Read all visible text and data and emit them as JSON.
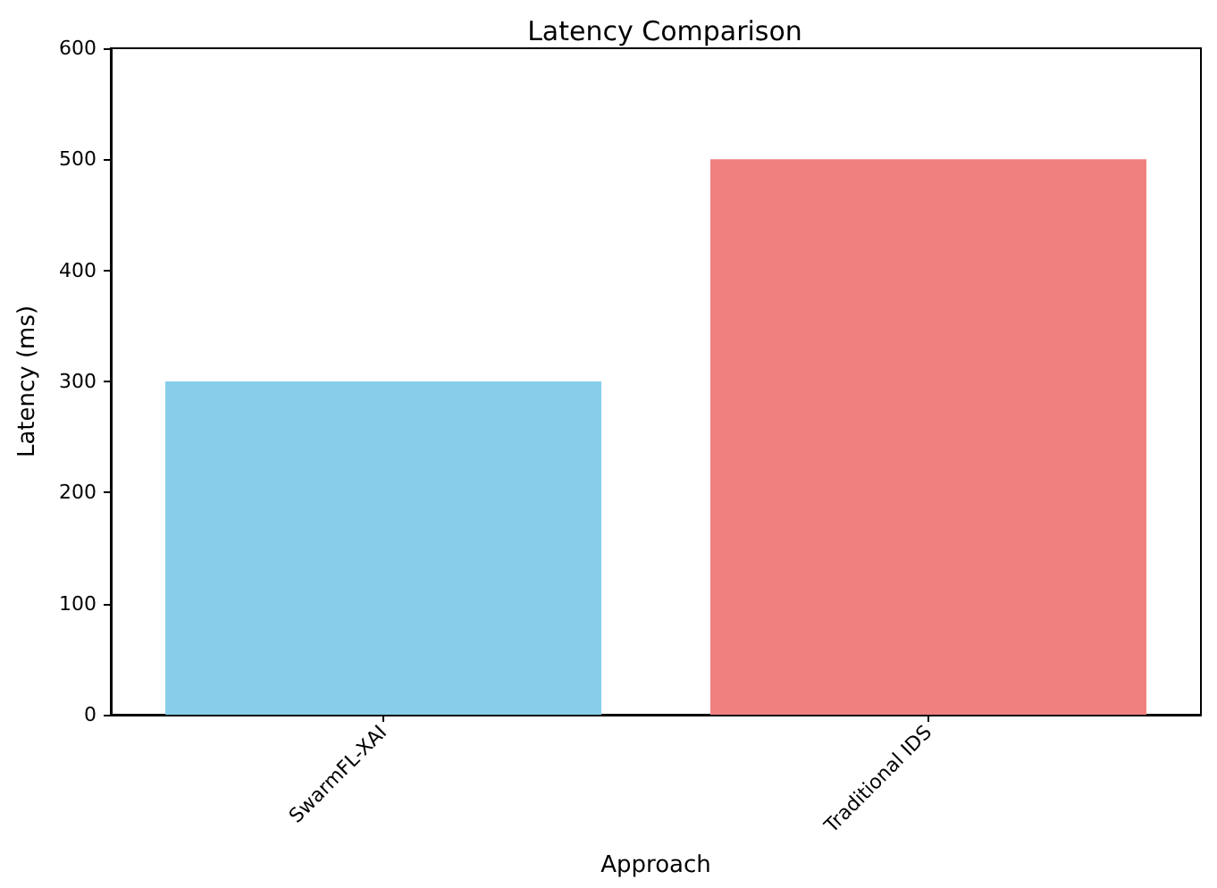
{
  "chart_data": {
    "type": "bar",
    "title": "Latency Comparison",
    "xlabel": "Approach",
    "ylabel": "Latency (ms)",
    "categories": [
      "SwarmFL-XAI",
      "Traditional IDS"
    ],
    "values": [
      300,
      500
    ],
    "colors": [
      "#87ceeb",
      "#f08080"
    ],
    "ylim": [
      0,
      600
    ],
    "yticks": [
      0,
      100,
      200,
      300,
      400,
      500,
      600
    ],
    "grid": false
  }
}
